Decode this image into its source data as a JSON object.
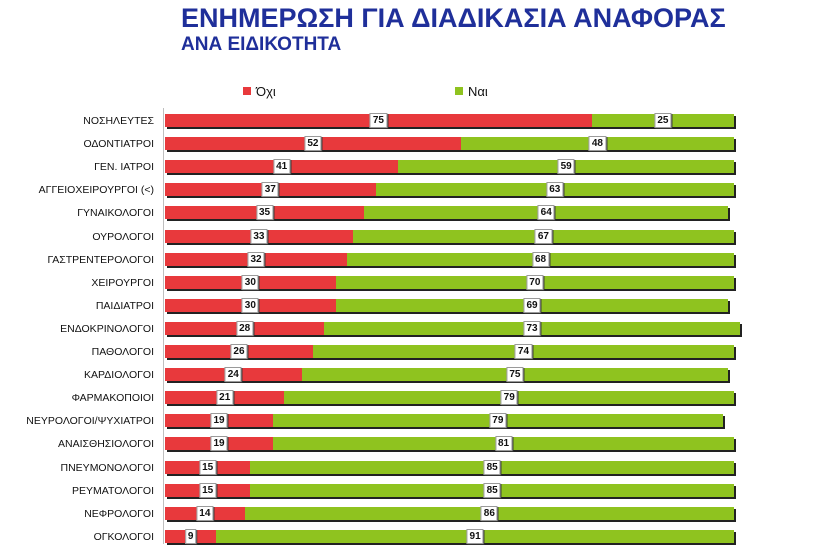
{
  "title": "ΕΝΗΜΕΡΩΣΗ ΓΙΑ ΔΙΑΔΙΚΑΣΙΑ ΑΝΑΦΟΡΑΣ",
  "subtitle": "ΑΝΑ ΕΙΔΙΚΟΤΗΤΑ",
  "colors": {
    "no": "#e8393c",
    "yes": "#8fc31f",
    "title": "#1f2f9a"
  },
  "chart_data": {
    "type": "bar",
    "orientation": "horizontal",
    "stacked": true,
    "percent_stacked": true,
    "legend_position": "top",
    "categories": [
      "ΝΟΣΗΛΕΥΤΕΣ",
      "ΟΔΟΝΤΙΑΤΡΟΙ",
      "ΓΕΝ. ΙΑΤΡΟΙ",
      "ΑΓΓΕΙΟΧΕΙΡΟΥΡΓΟΙ (<)",
      "ΓΥΝΑΙΚΟΛΟΓΟΙ",
      "ΟΥΡΟΛΟΓΟΙ",
      "ΓΑΣΤΡΕΝΤΕΡΟΛΟΓΟΙ",
      "ΧΕΙΡΟΥΡΓΟΙ",
      "ΠΑΙΔΙΑΤΡΟΙ",
      "ΕΝΔΟΚΡΙΝΟΛΟΓΟΙ",
      "ΠΑΘΟΛΟΓΟΙ",
      "ΚΑΡΔΙΟΛΟΓΟΙ",
      "ΦΑΡΜΑΚΟΠΟΙΟΙ",
      "ΝΕΥΡΟΛΟΓΟΙ/ΨΥΧΙΑΤΡΟΙ",
      "ΑΝΑΙΣΘΗΣΙΟΛΟΓΟΙ",
      "ΠΝΕΥΜΟΝΟΛΟΓΟΙ",
      "ΡΕΥΜΑΤΟΛΟΓΟΙ",
      "ΝΕΦΡΟΛΟΓΟΙ",
      "ΟΓΚΟΛΟΓΟΙ"
    ],
    "series": [
      {
        "name": "Όχι",
        "values": [
          75,
          52,
          41,
          37,
          35,
          33,
          32,
          30,
          30,
          28,
          26,
          24,
          21,
          19,
          19,
          15,
          15,
          14,
          9
        ]
      },
      {
        "name": "Ναι",
        "values": [
          25,
          48,
          59,
          63,
          64,
          67,
          68,
          70,
          69,
          73,
          74,
          75,
          79,
          79,
          81,
          85,
          85,
          86,
          91
        ]
      }
    ]
  }
}
